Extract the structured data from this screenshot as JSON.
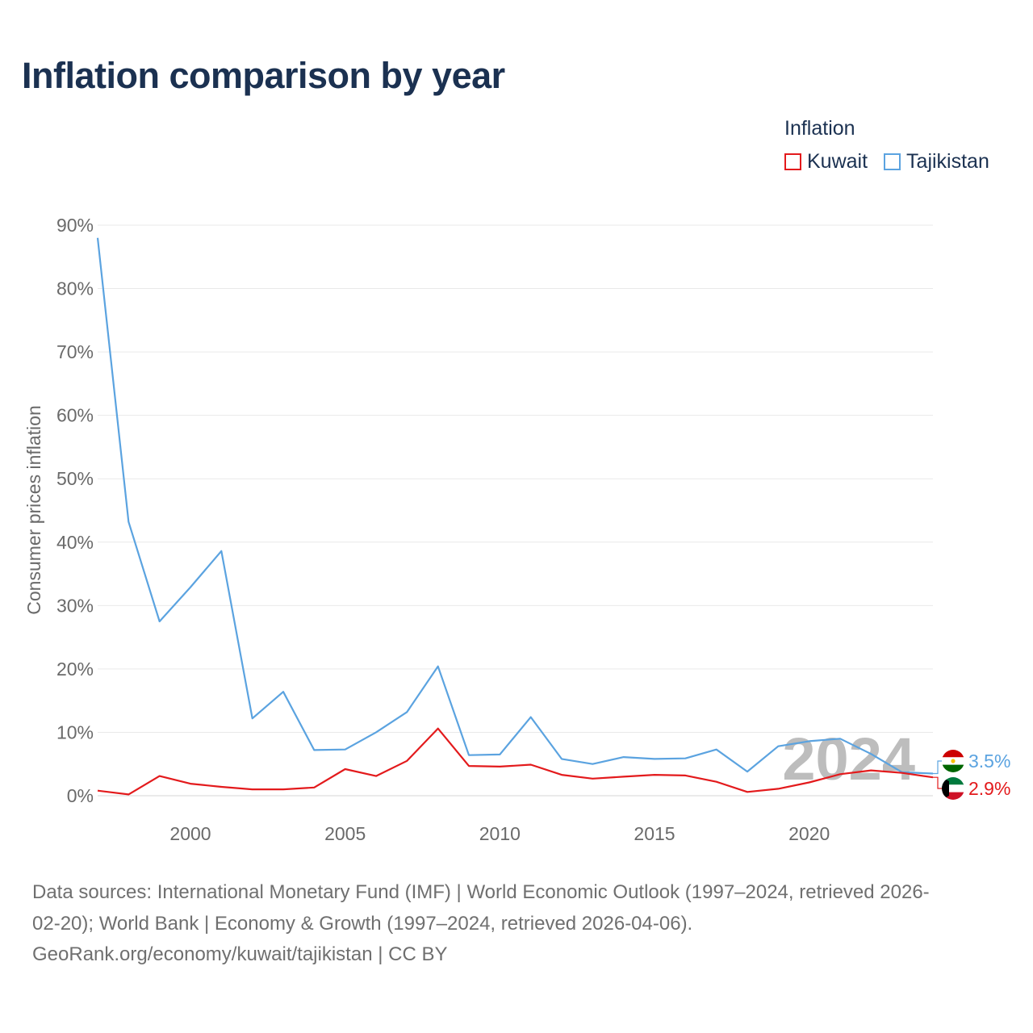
{
  "title": "Inflation comparison by year",
  "legend": {
    "title": "Inflation",
    "items": [
      {
        "label": "Kuwait",
        "color": "#e31a1c"
      },
      {
        "label": "Tajikistan",
        "color": "#5ba3e0"
      }
    ]
  },
  "chart_data": {
    "type": "line",
    "title": "Inflation comparison by year",
    "xlabel": "",
    "ylabel": "Consumer prices inflation",
    "xlim": [
      1997,
      2024
    ],
    "ylim": [
      0,
      90
    ],
    "x_ticks": [
      2000,
      2005,
      2010,
      2015,
      2020
    ],
    "y_ticks": [
      0,
      10,
      20,
      30,
      40,
      50,
      60,
      70,
      80,
      90
    ],
    "y_tick_labels": [
      "0%",
      "10%",
      "20%",
      "30%",
      "40%",
      "50%",
      "60%",
      "70%",
      "80%",
      "90%"
    ],
    "grid": true,
    "legend_position": "top-right",
    "x": [
      1997,
      1998,
      1999,
      2000,
      2001,
      2002,
      2003,
      2004,
      2005,
      2006,
      2007,
      2008,
      2009,
      2010,
      2011,
      2012,
      2013,
      2014,
      2015,
      2016,
      2017,
      2018,
      2019,
      2020,
      2021,
      2022,
      2023,
      2024
    ],
    "series": [
      {
        "name": "Kuwait",
        "color": "#e31a1c",
        "end_label": "2.9%",
        "flag": "kuwait-flag",
        "values": [
          0.8,
          0.2,
          3.1,
          1.9,
          1.4,
          1.0,
          1.0,
          1.3,
          4.2,
          3.1,
          5.5,
          10.6,
          4.7,
          4.6,
          4.9,
          3.3,
          2.7,
          3.0,
          3.3,
          3.2,
          2.2,
          0.6,
          1.1,
          2.1,
          3.4,
          4.0,
          3.6,
          2.9
        ]
      },
      {
        "name": "Tajikistan",
        "color": "#5ba3e0",
        "end_label": "3.5%",
        "flag": "tajikistan-flag",
        "values": [
          88.0,
          43.2,
          27.5,
          32.9,
          38.6,
          12.2,
          16.4,
          7.2,
          7.3,
          10.0,
          13.2,
          20.4,
          6.4,
          6.5,
          12.4,
          5.8,
          5.0,
          6.1,
          5.8,
          5.9,
          7.3,
          3.8,
          7.8,
          8.6,
          9.0,
          6.6,
          3.7,
          3.5
        ]
      }
    ],
    "year_watermark": "2024"
  },
  "source": {
    "line1": "Data sources: International Monetary Fund (IMF) | World Economic Outlook (1997–2024, retrieved 2026-",
    "line2": "02-20); World Bank | Economy & Growth (1997–2024, retrieved 2026-04-06).",
    "line3": "GeoRank.org/economy/kuwait/tajikistan | CC BY"
  }
}
